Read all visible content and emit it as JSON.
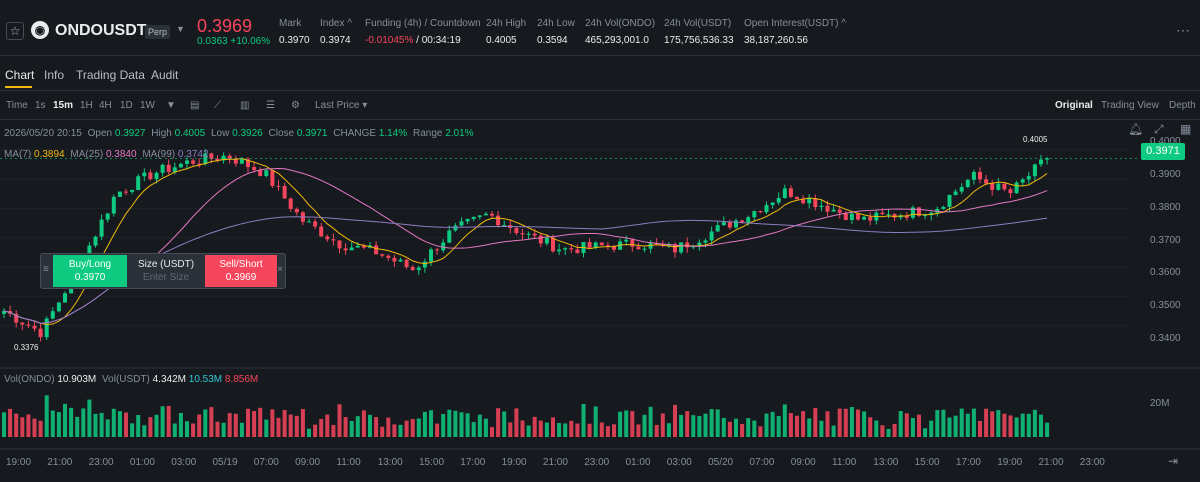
{
  "header": {
    "symbol": "ONDOUSDT",
    "type": "Perp",
    "price": "0.3969",
    "change": "0.0363 +10.06%",
    "stats": [
      {
        "l": "Mark",
        "v": "0.3970"
      },
      {
        "l": "Index ^",
        "v": "0.3974"
      },
      {
        "l": "Funding (4h) / Countdown",
        "v": "-0.01045%",
        "v2": "/ 00:34:19"
      },
      {
        "l": "24h High",
        "v": "0.4005"
      },
      {
        "l": "24h Low",
        "v": "0.3594"
      },
      {
        "l": "24h Vol(ONDO)",
        "v": "465,293,001.0"
      },
      {
        "l": "24h Vol(USDT)",
        "v": "175,756,536.33"
      },
      {
        "l": "Open Interest(USDT) ^",
        "v": "38,187,260.56"
      }
    ]
  },
  "tabs": [
    "Chart",
    "Info",
    "Trading Data",
    "Audit"
  ],
  "toolbar": {
    "time": "Time",
    "intervals": [
      "1s",
      "15m",
      "1H",
      "4H",
      "1D",
      "1W"
    ],
    "last_price": "Last Price",
    "views": [
      "Original",
      "Trading View",
      "Depth"
    ]
  },
  "ohlc": {
    "date": "2026/05/20 20:15",
    "open_l": "Open",
    "open": "0.3927",
    "high_l": "High",
    "high": "0.4005",
    "low_l": "Low",
    "low": "0.3926",
    "close_l": "Close",
    "close": "0.3971",
    "change_l": "CHANGE",
    "change": "1.14%",
    "range_l": "Range",
    "range": "2.01%"
  },
  "ma": {
    "ma7_l": "MA(7)",
    "ma7": "0.3894",
    "ma25_l": "MA(25)",
    "ma25": "0.3840",
    "ma99_l": "MA(99)",
    "ma99": "0.3742"
  },
  "vol": {
    "ondo_l": "Vol(ONDO)",
    "ondo": "10.903M",
    "usdt_l": "Vol(USDT)",
    "usdt": "4.342M",
    "a": "10.53M",
    "b": "8.856M"
  },
  "order": {
    "buy_l": "Buy/Long",
    "buy": "0.3970",
    "size_l": "Size (USDT)",
    "size_ph": "Enter Size",
    "sell_l": "Sell/Short",
    "sell": "0.3969"
  },
  "yaxis": [
    "0.4000",
    "0.3900",
    "0.3800",
    "0.3700",
    "0.3600",
    "0.3500",
    "0.3400"
  ],
  "vol_axis": "20M",
  "current_price": "0.3971",
  "high_tag": "0.4005",
  "low_tag": "0.3376",
  "xaxis": [
    "19:00",
    "21:00",
    "23:00",
    "01:00",
    "03:00",
    "05/19",
    "07:00",
    "09:00",
    "11:00",
    "13:00",
    "15:00",
    "17:00",
    "19:00",
    "21:00",
    "23:00",
    "01:00",
    "03:00",
    "05/20",
    "07:00",
    "09:00",
    "11:00",
    "13:00",
    "15:00",
    "17:00",
    "19:00",
    "21:00",
    "23:00"
  ],
  "chart_data": {
    "type": "candlestick",
    "interval": "15m",
    "ylim": [
      0.332,
      0.403
    ],
    "high": 0.4005,
    "low": 0.3376,
    "last": 0.3971,
    "key_closes": [
      0.345,
      0.3376,
      0.36,
      0.385,
      0.392,
      0.396,
      0.398,
      0.392,
      0.376,
      0.368,
      0.365,
      0.359,
      0.372,
      0.378,
      0.371,
      0.366,
      0.367,
      0.368,
      0.366,
      0.372,
      0.378,
      0.386,
      0.381,
      0.376,
      0.378,
      0.38,
      0.391,
      0.385,
      0.3971
    ]
  }
}
